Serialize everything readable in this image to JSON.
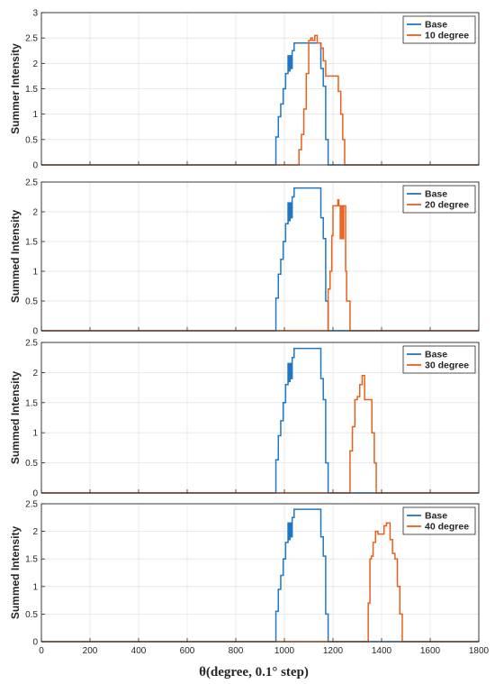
{
  "colors": {
    "base": "#1f77c4",
    "shifted": "#e8601c",
    "grid": "#e3e3e3",
    "axis": "#262626"
  },
  "xlabel": "θ(degree, 0.1° step)",
  "chart_data": [
    {
      "type": "line",
      "ylabel": "Summer Intensity",
      "xlim": [
        0,
        1800
      ],
      "ylim": [
        0,
        3
      ],
      "xticks": [
        "0",
        "200",
        "400",
        "600",
        "800",
        "1000",
        "1200",
        "1400",
        "1600",
        "1800"
      ],
      "yticks": [
        "0",
        "0.5",
        "1",
        "1.5",
        "2",
        "2.5",
        "3"
      ],
      "grid": true,
      "legend_position": "top-right",
      "series": [
        {
          "name": "Base",
          "color": "#1f77c4",
          "x": [
            0,
            965,
            965,
            975,
            975,
            985,
            985,
            995,
            995,
            1005,
            1005,
            1015,
            1015,
            1020,
            1020,
            1023,
            1023,
            1027,
            1027,
            1032,
            1032,
            1040,
            1040,
            1050,
            1050,
            1060,
            1060,
            1070,
            1070,
            1100,
            1100,
            1150,
            1150,
            1160,
            1160,
            1170,
            1170,
            1180,
            1180,
            1800
          ],
          "y": [
            0,
            0,
            0.55,
            0.55,
            0.95,
            0.95,
            1.2,
            1.2,
            1.5,
            1.5,
            1.8,
            1.8,
            2.15,
            2.15,
            1.85,
            1.85,
            2.15,
            2.15,
            1.9,
            1.9,
            2.25,
            2.25,
            2.4,
            2.4,
            2.4,
            2.4,
            2.4,
            2.4,
            2.4,
            2.4,
            2.4,
            2.4,
            1.9,
            1.9,
            1.55,
            1.55,
            0.5,
            0.5,
            0,
            0
          ]
        },
        {
          "name": "10 degree",
          "color": "#e8601c",
          "x": [
            0,
            1060,
            1060,
            1070,
            1070,
            1080,
            1080,
            1090,
            1090,
            1100,
            1100,
            1108,
            1108,
            1115,
            1115,
            1125,
            1125,
            1135,
            1135,
            1150,
            1150,
            1160,
            1160,
            1170,
            1170,
            1210,
            1210,
            1222,
            1222,
            1232,
            1232,
            1240,
            1240,
            1248,
            1248,
            1800
          ],
          "y": [
            0,
            0,
            0.3,
            0.3,
            0.6,
            0.6,
            1.1,
            1.1,
            1.8,
            1.8,
            2.45,
            2.45,
            2.5,
            2.5,
            2.45,
            2.45,
            2.55,
            2.55,
            2.4,
            2.4,
            2.3,
            2.3,
            2.05,
            2.05,
            1.75,
            1.75,
            1.75,
            1.75,
            1.45,
            1.45,
            1.0,
            1.0,
            0.5,
            0.5,
            0,
            0
          ]
        }
      ]
    },
    {
      "type": "line",
      "ylabel": "Summed Intensity",
      "xlim": [
        0,
        1800
      ],
      "ylim": [
        0,
        2.5
      ],
      "xticks": [
        "0",
        "200",
        "400",
        "600",
        "800",
        "1000",
        "1200",
        "1400",
        "1600",
        "1800"
      ],
      "yticks": [
        "0",
        "0.5",
        "1",
        "1.5",
        "2",
        "2.5"
      ],
      "grid": true,
      "legend_position": "top-right",
      "series": [
        {
          "name": "Base",
          "color": "#1f77c4",
          "x": [
            0,
            965,
            965,
            975,
            975,
            985,
            985,
            995,
            995,
            1005,
            1005,
            1015,
            1015,
            1020,
            1020,
            1023,
            1023,
            1027,
            1027,
            1032,
            1032,
            1040,
            1040,
            1050,
            1050,
            1060,
            1060,
            1070,
            1070,
            1100,
            1100,
            1150,
            1150,
            1160,
            1160,
            1170,
            1170,
            1180,
            1180,
            1800
          ],
          "y": [
            0,
            0,
            0.55,
            0.55,
            0.95,
            0.95,
            1.2,
            1.2,
            1.5,
            1.5,
            1.8,
            1.8,
            2.15,
            2.15,
            1.85,
            1.85,
            2.15,
            2.15,
            1.9,
            1.9,
            2.25,
            2.25,
            2.4,
            2.4,
            2.4,
            2.4,
            2.4,
            2.4,
            2.4,
            2.4,
            2.4,
            2.4,
            1.9,
            1.9,
            1.55,
            1.55,
            0.5,
            0.5,
            0,
            0
          ]
        },
        {
          "name": "20 degree",
          "color": "#e8601c",
          "x": [
            0,
            1180,
            1180,
            1188,
            1188,
            1195,
            1195,
            1200,
            1200,
            1220,
            1220,
            1224,
            1224,
            1230,
            1230,
            1234,
            1234,
            1240,
            1240,
            1244,
            1244,
            1252,
            1252,
            1256,
            1256,
            1270,
            1270,
            1800
          ],
          "y": [
            0,
            0,
            0.7,
            0.7,
            1.0,
            1.0,
            1.6,
            1.6,
            2.1,
            2.1,
            2.2,
            2.2,
            2.1,
            2.1,
            1.55,
            1.55,
            2.1,
            2.1,
            1.55,
            1.55,
            2.1,
            2.1,
            1.0,
            1.0,
            0.5,
            0.5,
            0,
            0
          ]
        }
      ]
    },
    {
      "type": "line",
      "ylabel": "Summed Intensity",
      "xlim": [
        0,
        1800
      ],
      "ylim": [
        0,
        2.5
      ],
      "xticks": [
        "0",
        "200",
        "400",
        "600",
        "800",
        "1000",
        "1200",
        "1400",
        "1600",
        "1800"
      ],
      "yticks": [
        "0",
        "0.5",
        "1",
        "1.5",
        "2",
        "2.5"
      ],
      "grid": true,
      "legend_position": "top-right",
      "series": [
        {
          "name": "Base",
          "color": "#1f77c4",
          "x": [
            0,
            965,
            965,
            975,
            975,
            985,
            985,
            995,
            995,
            1005,
            1005,
            1015,
            1015,
            1020,
            1020,
            1023,
            1023,
            1027,
            1027,
            1032,
            1032,
            1040,
            1040,
            1050,
            1050,
            1060,
            1060,
            1070,
            1070,
            1100,
            1100,
            1150,
            1150,
            1160,
            1160,
            1170,
            1170,
            1180,
            1180,
            1800
          ],
          "y": [
            0,
            0,
            0.55,
            0.55,
            0.95,
            0.95,
            1.2,
            1.2,
            1.5,
            1.5,
            1.8,
            1.8,
            2.15,
            2.15,
            1.85,
            1.85,
            2.15,
            2.15,
            1.9,
            1.9,
            2.25,
            2.25,
            2.4,
            2.4,
            2.4,
            2.4,
            2.4,
            2.4,
            2.4,
            2.4,
            2.4,
            2.4,
            1.9,
            1.9,
            1.55,
            1.55,
            0.5,
            0.5,
            0,
            0
          ]
        },
        {
          "name": "30 degree",
          "color": "#e8601c",
          "x": [
            0,
            1270,
            1270,
            1280,
            1280,
            1290,
            1290,
            1300,
            1300,
            1310,
            1310,
            1320,
            1320,
            1330,
            1330,
            1345,
            1345,
            1360,
            1360,
            1370,
            1370,
            1378,
            1378,
            1800
          ],
          "y": [
            0,
            0,
            0.7,
            0.7,
            1.1,
            1.1,
            1.55,
            1.55,
            1.6,
            1.6,
            1.8,
            1.8,
            1.95,
            1.95,
            1.55,
            1.55,
            1.55,
            1.55,
            1.0,
            1.0,
            0.5,
            0.5,
            0,
            0
          ]
        }
      ]
    },
    {
      "type": "line",
      "ylabel": "Summed Intensity",
      "xlim": [
        0,
        1800
      ],
      "ylim": [
        0,
        2.5
      ],
      "xticks": [
        "0",
        "200",
        "400",
        "600",
        "800",
        "1000",
        "1200",
        "1400",
        "1600",
        "1800"
      ],
      "yticks": [
        "0",
        "0.5",
        "1",
        "1.5",
        "2",
        "2.5"
      ],
      "grid": true,
      "legend_position": "top-right",
      "series": [
        {
          "name": "Base",
          "color": "#1f77c4",
          "x": [
            0,
            965,
            965,
            975,
            975,
            985,
            985,
            995,
            995,
            1005,
            1005,
            1015,
            1015,
            1020,
            1020,
            1023,
            1023,
            1027,
            1027,
            1032,
            1032,
            1040,
            1040,
            1050,
            1050,
            1060,
            1060,
            1070,
            1070,
            1100,
            1100,
            1150,
            1150,
            1160,
            1160,
            1170,
            1170,
            1180,
            1180,
            1800
          ],
          "y": [
            0,
            0,
            0.55,
            0.55,
            0.95,
            0.95,
            1.2,
            1.2,
            1.5,
            1.5,
            1.8,
            1.8,
            2.15,
            2.15,
            1.85,
            1.85,
            2.15,
            2.15,
            1.9,
            1.9,
            2.25,
            2.25,
            2.4,
            2.4,
            2.4,
            2.4,
            2.4,
            2.4,
            2.4,
            2.4,
            2.4,
            2.4,
            1.9,
            1.9,
            1.55,
            1.55,
            0.5,
            0.5,
            0,
            0
          ]
        },
        {
          "name": "40 degree",
          "color": "#e8601c",
          "x": [
            0,
            1345,
            1345,
            1352,
            1352,
            1358,
            1358,
            1365,
            1365,
            1375,
            1375,
            1385,
            1385,
            1410,
            1410,
            1420,
            1420,
            1435,
            1435,
            1445,
            1445,
            1455,
            1455,
            1465,
            1465,
            1475,
            1475,
            1485,
            1485,
            1800
          ],
          "y": [
            0,
            0,
            0.7,
            0.7,
            1.5,
            1.5,
            1.55,
            1.55,
            1.8,
            1.8,
            2.0,
            2.0,
            1.95,
            1.95,
            2.1,
            2.1,
            2.15,
            2.15,
            1.85,
            1.85,
            1.6,
            1.6,
            1.5,
            1.5,
            1.0,
            1.0,
            0.5,
            0.5,
            0,
            0
          ]
        }
      ]
    }
  ]
}
